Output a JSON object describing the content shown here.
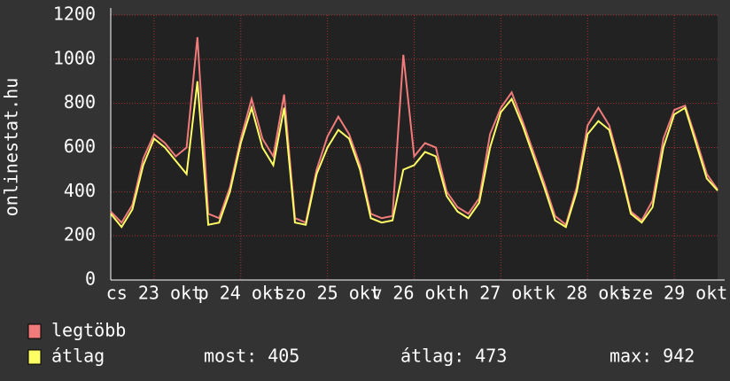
{
  "chart_data": {
    "type": "line",
    "y_label": "onlinestat.hu",
    "x": [
      0,
      3,
      6,
      9,
      12,
      15,
      18,
      21,
      24,
      27,
      30,
      33,
      36,
      39,
      42,
      45,
      48,
      51,
      54,
      57,
      60,
      63,
      66,
      69,
      72,
      75,
      78,
      81,
      84,
      87,
      90,
      93,
      96,
      99,
      102,
      105,
      108,
      111,
      114,
      117,
      120,
      123,
      126,
      129,
      132,
      135,
      138,
      141,
      144,
      147,
      150,
      153,
      156,
      159,
      162,
      165,
      168
    ],
    "xlim": [
      0,
      168
    ],
    "xticks": [
      {
        "value": 12,
        "label": "cs 23 okt"
      },
      {
        "value": 36,
        "label": "p 24 okt"
      },
      {
        "value": 60,
        "label": "szo 25 okt"
      },
      {
        "value": 84,
        "label": "v 26 okt"
      },
      {
        "value": 108,
        "label": "h 27 okt"
      },
      {
        "value": 132,
        "label": "k 28 okt"
      },
      {
        "value": 156,
        "label": "sze 29 okt"
      }
    ],
    "ylim": [
      0,
      1200
    ],
    "yticks": [
      0,
      200,
      400,
      600,
      800,
      1000,
      1200
    ],
    "grid": true,
    "series": [
      {
        "name": "legtöbb",
        "color": "#f07b7b",
        "values": [
          310,
          260,
          340,
          550,
          660,
          620,
          560,
          600,
          1100,
          300,
          280,
          420,
          640,
          820,
          640,
          560,
          840,
          280,
          260,
          500,
          650,
          740,
          660,
          520,
          300,
          280,
          290,
          1020,
          560,
          620,
          600,
          400,
          330,
          300,
          370,
          660,
          780,
          850,
          720,
          580,
          440,
          290,
          250,
          420,
          700,
          780,
          700,
          520,
          310,
          270,
          360,
          640,
          770,
          790,
          640,
          480,
          410
        ]
      },
      {
        "name": "átlag",
        "color": "#ffff66",
        "values": [
          300,
          240,
          320,
          520,
          640,
          600,
          540,
          480,
          900,
          250,
          260,
          400,
          620,
          780,
          600,
          520,
          780,
          260,
          250,
          480,
          600,
          680,
          640,
          500,
          280,
          260,
          270,
          500,
          520,
          580,
          560,
          380,
          310,
          280,
          350,
          600,
          760,
          820,
          700,
          560,
          420,
          270,
          240,
          400,
          660,
          720,
          680,
          500,
          300,
          260,
          330,
          600,
          750,
          780,
          620,
          460,
          405
        ]
      }
    ],
    "stats": [
      {
        "label": "most:",
        "value": 405
      },
      {
        "label": "átlag:",
        "value": 473
      },
      {
        "label": "max:",
        "value": 942
      }
    ]
  }
}
